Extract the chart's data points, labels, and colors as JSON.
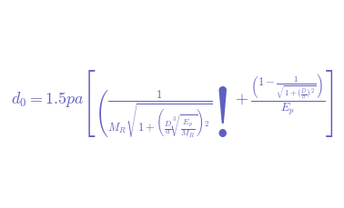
{
  "formula": "$d_0 = 1.5pa\\left[\\left(\\frac{1}{M_R\\sqrt{1+\\left(\\frac{D}{a}\\sqrt[3]{\\frac{E_p}{M_R}}\\right)^2}}\\right)+\\frac{\\left(1-\\frac{1}{\\sqrt{1+\\left(\\frac{D}{a}\\right)^2}}\\right)}{E_p}\\right]$",
  "font_size": 13,
  "fig_width": 3.78,
  "fig_height": 2.29,
  "dpi": 100,
  "text_color": "#6060c0",
  "bg_color": "#ffffff"
}
